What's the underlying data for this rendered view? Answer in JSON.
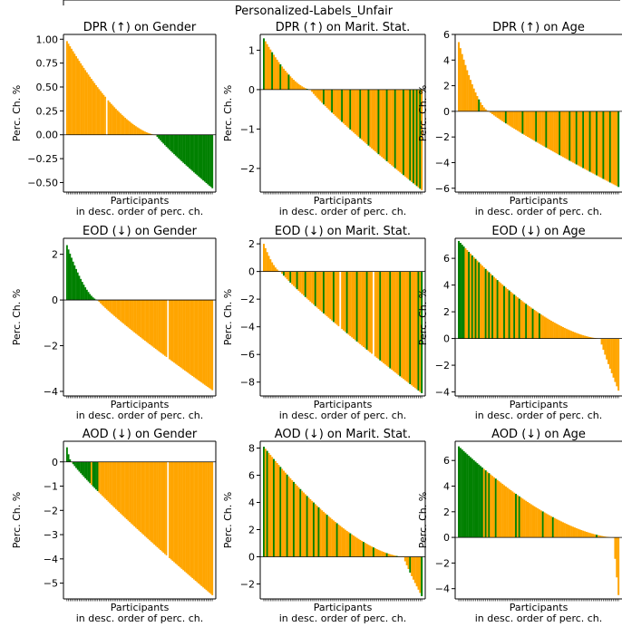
{
  "figure": {
    "suptitle": "Personalized-Labels_Unfair"
  },
  "colors": {
    "decrease": "#ffa500",
    "increase": "#008000"
  },
  "chart_data": [
    {
      "type": "bar",
      "title": "DPR (↑) on Gender",
      "ylabel": "Perc. Ch. %",
      "xlabel": [
        "Participants",
        "in desc. order of perc. ch."
      ],
      "ylim": [
        -0.6,
        1.05
      ],
      "yticks": [
        -0.5,
        -0.25,
        0,
        0.25,
        0.5,
        0.75,
        1.0
      ],
      "ytick_labels": [
        "−0.50",
        "−0.25",
        "0.00",
        "0.25",
        "0.50",
        "0.75",
        "1.00"
      ],
      "n": 96,
      "start": 0.98,
      "end": -0.56,
      "neg_color": "increase",
      "whites": [
        26
      ],
      "flips": []
    },
    {
      "type": "bar",
      "title": "DPR (↑) on Marit. Stat.",
      "ylabel": "Perc. Ch. %",
      "xlabel": [
        "Participants",
        "in desc. order of perc. ch."
      ],
      "ylim": [
        -2.6,
        1.4
      ],
      "yticks": [
        -2,
        -1,
        0,
        1
      ],
      "ytick_labels": [
        "−2",
        "−1",
        "0",
        "1"
      ],
      "n": 96,
      "start": 1.3,
      "end": -2.55,
      "zero_at": 28,
      "base": "decrease",
      "alt": "increase",
      "flips": [
        0,
        5,
        10,
        15,
        26,
        36,
        41,
        47,
        52,
        58,
        63,
        69,
        74,
        79,
        84,
        88,
        90,
        92,
        94
      ],
      "whites": []
    },
    {
      "type": "bar",
      "title": "DPR (↑) on Age",
      "ylabel": "Perc. Ch. %",
      "xlabel": [
        "Participants",
        "in desc. order of perc. ch."
      ],
      "ylim": [
        -6.3,
        6.0
      ],
      "yticks": [
        -6,
        -4,
        -2,
        0,
        2,
        4,
        6
      ],
      "ytick_labels": [
        "−6",
        "−4",
        "−2",
        "0",
        "2",
        "4",
        "6"
      ],
      "n": 96,
      "start": 5.4,
      "end": -5.9,
      "zero_at": 18,
      "base": "decrease",
      "alt": "increase",
      "flips": [
        12,
        28,
        38,
        46,
        52,
        60,
        66,
        70,
        74,
        78,
        82,
        86,
        90,
        95
      ],
      "whites": []
    },
    {
      "type": "bar",
      "title": "EOD (↓) on Gender",
      "ylabel": "Perc. Ch. %",
      "xlabel": [
        "Participants",
        "in desc. order of perc. ch."
      ],
      "ylim": [
        -4.2,
        2.7
      ],
      "yticks": [
        -4,
        -2,
        0,
        2
      ],
      "ytick_labels": [
        "−4",
        "−2",
        "0",
        "2"
      ],
      "n": 96,
      "start": 2.4,
      "end": -3.95,
      "zero_at": 20,
      "pos_color": "increase",
      "neg_color": "decrease",
      "whites": [
        66
      ],
      "flips": []
    },
    {
      "type": "bar",
      "title": "EOD (↓) on Marit. Stat.",
      "ylabel": "Perc. Ch. %",
      "xlabel": [
        "Participants",
        "in desc. order of perc. ch."
      ],
      "ylim": [
        -9.0,
        2.4
      ],
      "yticks": [
        -8,
        -6,
        -4,
        -2,
        0,
        2
      ],
      "ytick_labels": [
        "−8",
        "−6",
        "−4",
        "−2",
        "0",
        "2"
      ],
      "n": 96,
      "start": 2.0,
      "end": -8.8,
      "zero_at": 10,
      "base": "decrease",
      "alt": "increase",
      "flips": [
        12,
        16,
        20,
        25,
        31,
        36,
        42,
        50,
        56,
        62,
        70,
        76,
        82,
        88,
        93,
        95
      ],
      "whites": [
        46,
        66
      ],
      "flips_pos": []
    },
    {
      "type": "bar",
      "title": "EOD (↓) on Age",
      "ylabel": "Perc. Ch. %",
      "xlabel": [
        "Participants",
        "in desc. order of perc. ch."
      ],
      "ylim": [
        -4.3,
        7.5
      ],
      "yticks": [
        -4,
        -2,
        0,
        2,
        4,
        6
      ],
      "ytick_labels": [
        "−4",
        "−2",
        "0",
        "2",
        "4",
        "6"
      ],
      "n": 96,
      "start": 7.3,
      "end": -3.9,
      "zero_at": 84,
      "base": "decrease",
      "alt": "increase",
      "flips": [
        0,
        1,
        2,
        3,
        6,
        8,
        10,
        12,
        16,
        18,
        20,
        23,
        27,
        30,
        33,
        36,
        40,
        44,
        48
      ],
      "whites": [],
      "mode": "pos"
    },
    {
      "type": "bar",
      "title": "AOD (↓) on Gender",
      "ylabel": "Perc. Ch. %",
      "xlabel": [
        "Participants",
        "in desc. order of perc. ch."
      ],
      "ylim": [
        -5.65,
        0.85
      ],
      "yticks": [
        -5,
        -4,
        -3,
        -2,
        -1,
        0
      ],
      "ytick_labels": [
        "−5",
        "−4",
        "−3",
        "−2",
        "−1",
        "0"
      ],
      "n": 96,
      "start": 0.6,
      "end": -5.5,
      "zero_at": 3,
      "base": "decrease",
      "alt": "increase",
      "flips": [
        0,
        1,
        2,
        4,
        5,
        6,
        7,
        8,
        9,
        10,
        11,
        12,
        13,
        14,
        15,
        17,
        18,
        19,
        20
      ],
      "whites": [
        66
      ],
      "mode": "neg"
    },
    {
      "type": "bar",
      "title": "AOD (↓) on Marit. Stat.",
      "ylabel": "Perc. Ch. %",
      "xlabel": [
        "Participants",
        "in desc. order of perc. ch."
      ],
      "ylim": [
        -3.1,
        8.5
      ],
      "yticks": [
        -2,
        0,
        2,
        4,
        6,
        8
      ],
      "ytick_labels": [
        "−2",
        "0",
        "2",
        "4",
        "6",
        "8"
      ],
      "n": 96,
      "start": 8.1,
      "end": -2.9,
      "zero_at": 84,
      "base": "decrease",
      "alt": "increase",
      "flips": [
        0,
        2,
        6,
        10,
        14,
        18,
        22,
        26,
        30,
        33,
        38,
        44,
        52,
        60,
        66,
        74,
        80,
        88,
        95
      ],
      "whites": [],
      "mode": "pos"
    },
    {
      "type": "bar",
      "title": "AOD (↓) on Age",
      "ylabel": "Perc. Ch. %",
      "xlabel": [
        "Participants",
        "in desc. order of perc. ch."
      ],
      "ylim": [
        -4.8,
        7.5
      ],
      "yticks": [
        -4,
        -2,
        0,
        2,
        4,
        6
      ],
      "ytick_labels": [
        "−4",
        "−2",
        "0",
        "2",
        "4",
        "6"
      ],
      "n": 96,
      "start": 7.1,
      "end": -4.5,
      "zero_at": 92,
      "base": "decrease",
      "alt": "increase",
      "flips": [
        0,
        1,
        2,
        3,
        4,
        5,
        6,
        7,
        8,
        9,
        10,
        11,
        12,
        13,
        14,
        16,
        18,
        22,
        34,
        36,
        50,
        56,
        82
      ],
      "whites": [],
      "mode": "pos"
    }
  ]
}
